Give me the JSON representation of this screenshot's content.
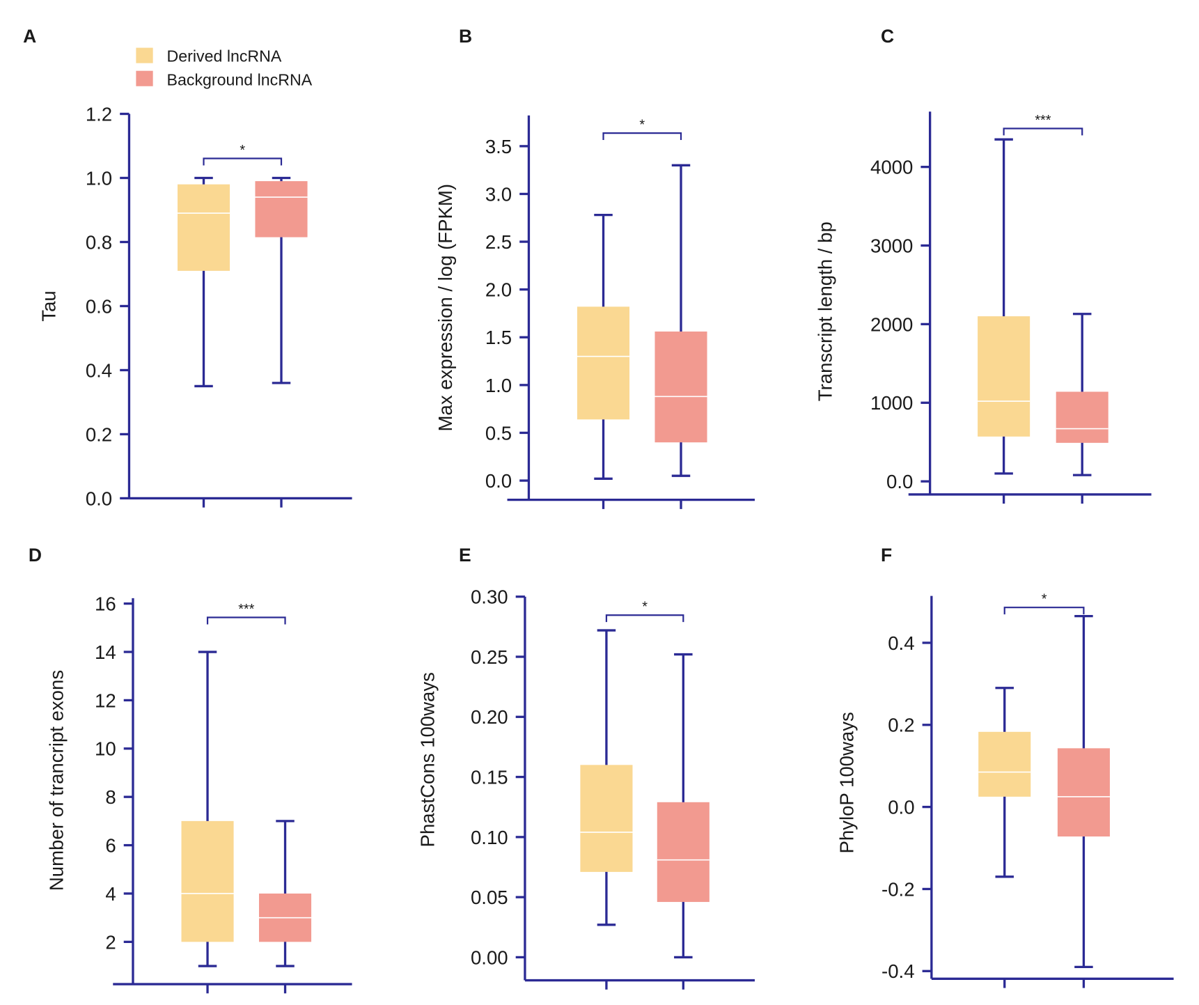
{
  "colors": {
    "axis": "#2B2A94",
    "derived": "#FAD892",
    "background": "#F29A90",
    "median": "#ffffff"
  },
  "legend": {
    "items": [
      {
        "label": "Derived lncRNA",
        "color": "#FAD892"
      },
      {
        "label": "Background lncRNA",
        "color": "#F29A90"
      }
    ],
    "placement": "top-left (panel A)"
  },
  "chart_data": [
    {
      "panel": "A",
      "type": "box",
      "ylabel": "Tau",
      "ticks": [
        0,
        0.2,
        0.4,
        0.6,
        0.8,
        1.0,
        1.2
      ],
      "tick_labels": [
        "0.0",
        "0.2",
        "0.4",
        "0.6",
        "0.8",
        "1.0",
        "1.2"
      ],
      "ylim": [
        0,
        1.2
      ],
      "significance": "*",
      "series": [
        {
          "name": "Derived lncRNA",
          "min": 0.35,
          "q1": 0.71,
          "median": 0.89,
          "q3": 0.98,
          "max": 1.0
        },
        {
          "name": "Background lncRNA",
          "min": 0.36,
          "q1": 0.815,
          "median": 0.94,
          "q3": 0.99,
          "max": 1.0
        }
      ]
    },
    {
      "panel": "B",
      "type": "box",
      "ylabel": "Max expression / log (FPKM)",
      "ticks": [
        0,
        0.5,
        1.0,
        1.5,
        2.0,
        2.5,
        3.0,
        3.5
      ],
      "tick_labels": [
        "0.0",
        "0.5",
        "1.0",
        "1.5",
        "2.0",
        "2.5",
        "3.0",
        "3.5"
      ],
      "ylim": [
        -0.2,
        3.8
      ],
      "significance": "*",
      "series": [
        {
          "name": "Derived lncRNA",
          "min": 0.02,
          "q1": 0.64,
          "median": 1.3,
          "q3": 1.82,
          "max": 2.78
        },
        {
          "name": "Background lncRNA",
          "min": 0.05,
          "q1": 0.4,
          "median": 0.88,
          "q3": 1.56,
          "max": 3.3
        }
      ]
    },
    {
      "panel": "C",
      "type": "box",
      "ylabel": "Transcript length / bp",
      "ticks": [
        0,
        1000,
        2000,
        3000,
        4000
      ],
      "tick_labels": [
        "0.0",
        "1000",
        "2000",
        "3000",
        "4000"
      ],
      "ylim": [
        -170,
        4700
      ],
      "significance": "***",
      "series": [
        {
          "name": "Derived lncRNA",
          "min": 100,
          "q1": 570,
          "median": 1020,
          "q3": 2100,
          "max": 4350
        },
        {
          "name": "Background lncRNA",
          "min": 80,
          "q1": 490,
          "median": 670,
          "q3": 1140,
          "max": 2130
        }
      ]
    },
    {
      "panel": "D",
      "type": "box",
      "ylabel": "Number of trancript exons",
      "ticks": [
        2,
        4,
        6,
        8,
        10,
        12,
        14,
        16
      ],
      "tick_labels": [
        "2",
        "4",
        "6",
        "8",
        "10",
        "12",
        "14",
        "16"
      ],
      "ylim": [
        0.2,
        16.2
      ],
      "significance": "***",
      "series": [
        {
          "name": "Derived lncRNA",
          "min": 1,
          "q1": 2,
          "median": 4,
          "q3": 7,
          "max": 14
        },
        {
          "name": "Background lncRNA",
          "min": 1,
          "q1": 2,
          "median": 3,
          "q3": 4,
          "max": 7
        }
      ]
    },
    {
      "panel": "E",
      "type": "box",
      "ylabel": "PhastCons 100ways",
      "ticks": [
        0,
        0.05,
        0.1,
        0.15,
        0.2,
        0.25,
        0.3
      ],
      "tick_labels": [
        "0.00",
        "0.05",
        "0.10",
        "0.15",
        "0.20",
        "0.25",
        "0.30"
      ],
      "ylim": [
        -0.02,
        0.3
      ],
      "significance": "*",
      "series": [
        {
          "name": "Derived lncRNA",
          "min": 0.027,
          "q1": 0.071,
          "median": 0.104,
          "q3": 0.16,
          "max": 0.272
        },
        {
          "name": "Background lncRNA",
          "min": 0.0,
          "q1": 0.046,
          "median": 0.081,
          "q3": 0.129,
          "max": 0.252
        }
      ]
    },
    {
      "panel": "F",
      "type": "box",
      "ylabel": "PhyloP 100ways",
      "ticks": [
        -0.4,
        -0.2,
        0.0,
        0.2,
        0.4
      ],
      "tick_labels": [
        "-0.4",
        "-0.2",
        "0.0",
        "0.2",
        "0.4"
      ],
      "ylim": [
        -0.42,
        0.51
      ],
      "significance": "*",
      "series": [
        {
          "name": "Derived lncRNA",
          "min": -0.17,
          "q1": 0.025,
          "median": 0.085,
          "q3": 0.183,
          "max": 0.29
        },
        {
          "name": "Background lncRNA",
          "min": -0.39,
          "q1": -0.072,
          "median": 0.025,
          "q3": 0.143,
          "max": 0.465
        }
      ]
    }
  ]
}
